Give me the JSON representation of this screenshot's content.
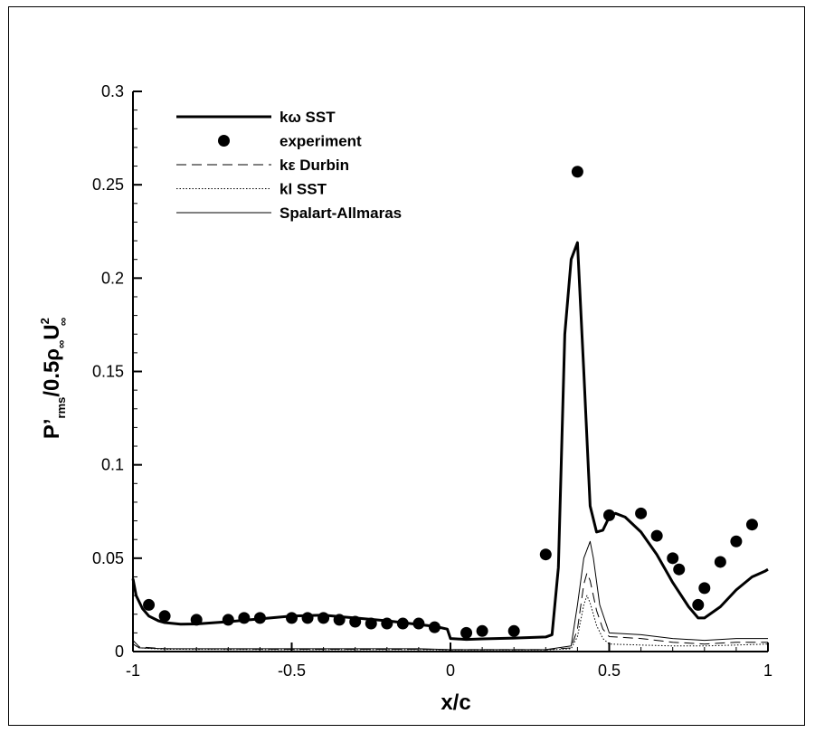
{
  "chart_data": {
    "type": "line",
    "title": "",
    "xlabel": "x/c",
    "ylabel": {
      "p": "P",
      "prime": "’",
      "rms": "rms",
      "mid": "/0.5",
      "rho": "ρ",
      "inf": "∞",
      "u": "U",
      "sq": "2"
    },
    "xlim": [
      -1,
      1
    ],
    "ylim": [
      0,
      0.3
    ],
    "x_ticks": [
      -1,
      -0.5,
      0,
      0.5,
      1
    ],
    "x_tick_labels": [
      "-1",
      "-0.5",
      "0",
      "0.5",
      "1"
    ],
    "y_ticks": [
      0,
      0.05,
      0.1,
      0.15,
      0.2,
      0.25,
      0.3
    ],
    "y_tick_labels": [
      "0",
      "0.05",
      "0.1",
      "0.15",
      "0.2",
      "0.25",
      "0.3"
    ],
    "grid": false,
    "legend_placement": "top-left",
    "series": [
      {
        "name": "kω SST",
        "style": "solid-thick",
        "color": "#000000",
        "x": [
          -1.0,
          -0.99,
          -0.97,
          -0.95,
          -0.92,
          -0.9,
          -0.85,
          -0.8,
          -0.7,
          -0.6,
          -0.5,
          -0.4,
          -0.3,
          -0.2,
          -0.1,
          -0.05,
          -0.01,
          0.0,
          0.05,
          0.1,
          0.2,
          0.3,
          0.32,
          0.34,
          0.36,
          0.38,
          0.4,
          0.42,
          0.44,
          0.46,
          0.48,
          0.5,
          0.52,
          0.55,
          0.6,
          0.65,
          0.7,
          0.75,
          0.78,
          0.8,
          0.85,
          0.9,
          0.95,
          0.99,
          1.0
        ],
        "values": [
          0.039,
          0.03,
          0.023,
          0.019,
          0.0165,
          0.0155,
          0.0147,
          0.0148,
          0.016,
          0.0175,
          0.019,
          0.0195,
          0.018,
          0.0165,
          0.0145,
          0.0135,
          0.012,
          0.007,
          0.0065,
          0.0068,
          0.0072,
          0.0078,
          0.009,
          0.045,
          0.17,
          0.21,
          0.219,
          0.15,
          0.078,
          0.064,
          0.065,
          0.072,
          0.074,
          0.072,
          0.064,
          0.052,
          0.037,
          0.024,
          0.018,
          0.018,
          0.024,
          0.033,
          0.04,
          0.043,
          0.044
        ]
      },
      {
        "name": "experiment",
        "style": "markers",
        "color": "#000000",
        "x": [
          -0.95,
          -0.9,
          -0.8,
          -0.7,
          -0.65,
          -0.6,
          -0.5,
          -0.45,
          -0.4,
          -0.35,
          -0.3,
          -0.25,
          -0.2,
          -0.15,
          -0.1,
          -0.05,
          0.05,
          0.1,
          0.2,
          0.3,
          0.4,
          0.5,
          0.6,
          0.65,
          0.7,
          0.72,
          0.78,
          0.8,
          0.85,
          0.9,
          0.95
        ],
        "values": [
          0.025,
          0.019,
          0.017,
          0.017,
          0.018,
          0.018,
          0.018,
          0.018,
          0.018,
          0.017,
          0.016,
          0.015,
          0.015,
          0.015,
          0.015,
          0.013,
          0.01,
          0.011,
          0.011,
          0.052,
          0.257,
          0.073,
          0.074,
          0.062,
          0.05,
          0.044,
          0.025,
          0.034,
          0.048,
          0.059,
          0.068
        ]
      },
      {
        "name": "kε Durbin",
        "style": "dashed",
        "color": "#000000",
        "x": [
          -1.0,
          -0.98,
          -0.9,
          -0.5,
          -0.1,
          0.0,
          0.3,
          0.38,
          0.4,
          0.42,
          0.43,
          0.44,
          0.46,
          0.48,
          0.5,
          0.6,
          0.7,
          0.8,
          0.9,
          1.0
        ],
        "values": [
          0.006,
          0.0025,
          0.0015,
          0.0012,
          0.0012,
          0.001,
          0.001,
          0.002,
          0.012,
          0.036,
          0.042,
          0.038,
          0.022,
          0.012,
          0.008,
          0.007,
          0.005,
          0.004,
          0.005,
          0.005
        ]
      },
      {
        "name": "kl SST",
        "style": "dotted",
        "color": "#000000",
        "x": [
          -1.0,
          -0.98,
          -0.9,
          -0.5,
          -0.1,
          0.0,
          0.3,
          0.38,
          0.4,
          0.42,
          0.43,
          0.44,
          0.46,
          0.48,
          0.5,
          0.6,
          0.7,
          0.8,
          0.9,
          1.0
        ],
        "values": [
          0.004,
          0.002,
          0.0012,
          0.001,
          0.001,
          0.0008,
          0.0008,
          0.0015,
          0.008,
          0.025,
          0.03,
          0.026,
          0.014,
          0.007,
          0.004,
          0.0035,
          0.003,
          0.003,
          0.0035,
          0.004
        ]
      },
      {
        "name": "Spalart-Allmaras",
        "style": "solid-thin",
        "color": "#000000",
        "x": [
          -1.0,
          -0.98,
          -0.9,
          -0.5,
          -0.1,
          0.0,
          0.3,
          0.38,
          0.4,
          0.42,
          0.44,
          0.45,
          0.47,
          0.5,
          0.6,
          0.7,
          0.8,
          0.9,
          1.0
        ],
        "values": [
          0.004,
          0.002,
          0.0015,
          0.0015,
          0.0015,
          0.001,
          0.001,
          0.003,
          0.025,
          0.05,
          0.059,
          0.05,
          0.025,
          0.01,
          0.009,
          0.007,
          0.006,
          0.007,
          0.007
        ]
      }
    ]
  }
}
